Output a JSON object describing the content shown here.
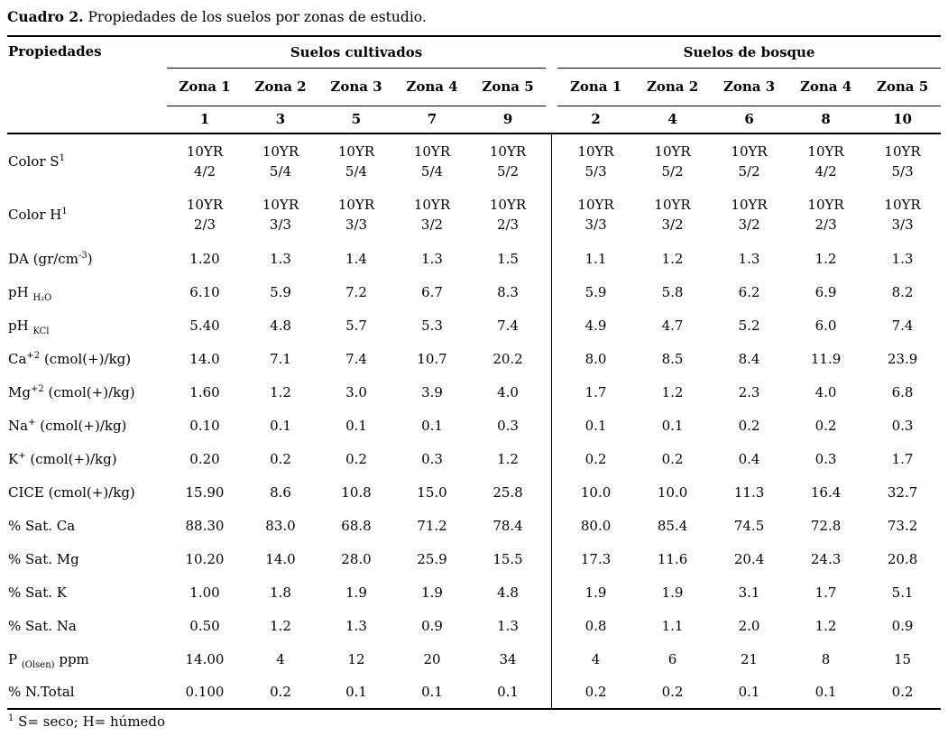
{
  "title": {
    "prefix": "Cuadro 2.",
    "text": " Propiedades de los suelos por zonas de estudio."
  },
  "table": {
    "properties_header": "Propiedades",
    "groups": [
      {
        "label": "Suelos cultivados",
        "zones": [
          "Zona 1",
          "Zona 2",
          "Zona 3",
          "Zona 4",
          "Zona 5"
        ],
        "sample_numbers": [
          "1",
          "3",
          "5",
          "7",
          "9"
        ]
      },
      {
        "label": "Suelos de bosque",
        "zones": [
          "Zona 1",
          "Zona 2",
          "Zona 3",
          "Zona 4",
          "Zona 5"
        ],
        "sample_numbers": [
          "2",
          "4",
          "6",
          "8",
          "10"
        ]
      }
    ],
    "rows": [
      {
        "tall": true,
        "label": {
          "base": "Color S",
          "sup": "1"
        },
        "values": [
          "10YR\n4/2",
          "10YR\n5/4",
          "10YR\n5/4",
          "10YR\n5/4",
          "10YR\n5/2",
          "10YR\n5/3",
          "10YR\n5/2",
          "10YR\n5/2",
          "10YR\n4/2",
          "10YR\n5/3"
        ]
      },
      {
        "tall": true,
        "label": {
          "base": "Color H",
          "sup": "1"
        },
        "values": [
          "10YR\n2/3",
          "10YR\n3/3",
          "10YR\n3/3",
          "10YR\n3/2",
          "10YR\n2/3",
          "10YR\n3/3",
          "10YR\n3/2",
          "10YR\n3/2",
          "10YR\n2/3",
          "10YR\n3/3"
        ]
      },
      {
        "label": {
          "base": "DA (gr/cm",
          "sup": "-3",
          "rest": ")"
        },
        "values": [
          "1.20",
          "1.3",
          "1.4",
          "1.3",
          "1.5",
          "1.1",
          "1.2",
          "1.3",
          "1.2",
          "1.3"
        ]
      },
      {
        "label": {
          "base": "pH ",
          "sub": "H₂O"
        },
        "values": [
          "6.10",
          "5.9",
          "7.2",
          "6.7",
          "8.3",
          "5.9",
          "5.8",
          "6.2",
          "6.9",
          "8.2"
        ]
      },
      {
        "label": {
          "base": "pH ",
          "sub": "KCl"
        },
        "values": [
          "5.40",
          "4.8",
          "5.7",
          "5.3",
          "7.4",
          "4.9",
          "4.7",
          "5.2",
          "6.0",
          "7.4"
        ]
      },
      {
        "label": {
          "base": "Ca",
          "sup": "+2",
          "rest": " (cmol(+)/kg)"
        },
        "values": [
          "14.0",
          "7.1",
          "7.4",
          "10.7",
          "20.2",
          "8.0",
          "8.5",
          "8.4",
          "11.9",
          "23.9"
        ]
      },
      {
        "label": {
          "base": "Mg",
          "sup": "+2",
          "rest": " (cmol(+)/kg)"
        },
        "values": [
          "1.60",
          "1.2",
          "3.0",
          "3.9",
          "4.0",
          "1.7",
          "1.2",
          "2.3",
          "4.0",
          "6.8"
        ]
      },
      {
        "label": {
          "base": "Na",
          "sup": "+",
          "rest": " (cmol(+)/kg)"
        },
        "values": [
          "0.10",
          "0.1",
          "0.1",
          "0.1",
          "0.3",
          "0.1",
          "0.1",
          "0.2",
          "0.2",
          "0.3"
        ]
      },
      {
        "label": {
          "base": "K",
          "sup": "+",
          "rest": " (cmol(+)/kg)"
        },
        "values": [
          "0.20",
          "0.2",
          "0.2",
          "0.3",
          "1.2",
          "0.2",
          "0.2",
          "0.4",
          "0.3",
          "1.7"
        ]
      },
      {
        "label": {
          "base": "CICE (cmol(+)/kg)"
        },
        "values": [
          "15.90",
          "8.6",
          "10.8",
          "15.0",
          "25.8",
          "10.0",
          "10.0",
          "11.3",
          "16.4",
          "32.7"
        ]
      },
      {
        "label": {
          "base": "% Sat. Ca"
        },
        "values": [
          "88.30",
          "83.0",
          "68.8",
          "71.2",
          "78.4",
          "80.0",
          "85.4",
          "74.5",
          "72.8",
          "73.2"
        ]
      },
      {
        "label": {
          "base": "% Sat. Mg"
        },
        "values": [
          "10.20",
          "14.0",
          "28.0",
          "25.9",
          "15.5",
          "17.3",
          "11.6",
          "20.4",
          "24.3",
          "20.8"
        ]
      },
      {
        "label": {
          "base": "% Sat. K"
        },
        "values": [
          "1.00",
          "1.8",
          "1.9",
          "1.9",
          "4.8",
          "1.9",
          "1.9",
          "3.1",
          "1.7",
          "5.1"
        ]
      },
      {
        "label": {
          "base": "% Sat. Na"
        },
        "values": [
          "0.50",
          "1.2",
          "1.3",
          "0.9",
          "1.3",
          "0.8",
          "1.1",
          "2.0",
          "1.2",
          "0.9"
        ]
      },
      {
        "label": {
          "base": "P ",
          "sub": "(Olsen)",
          "rest": " ppm"
        },
        "values": [
          "14.00",
          "4",
          "12",
          "20",
          "34",
          "4",
          "6",
          "21",
          "8",
          "15"
        ]
      },
      {
        "label": {
          "base": "% N.Total"
        },
        "values": [
          "0.100",
          "0.2",
          "0.1",
          "0.1",
          "0.1",
          "0.2",
          "0.2",
          "0.1",
          "0.1",
          "0.2"
        ]
      }
    ]
  },
  "footnote": {
    "sup": "1",
    "text": " S= seco; H= húmedo"
  }
}
